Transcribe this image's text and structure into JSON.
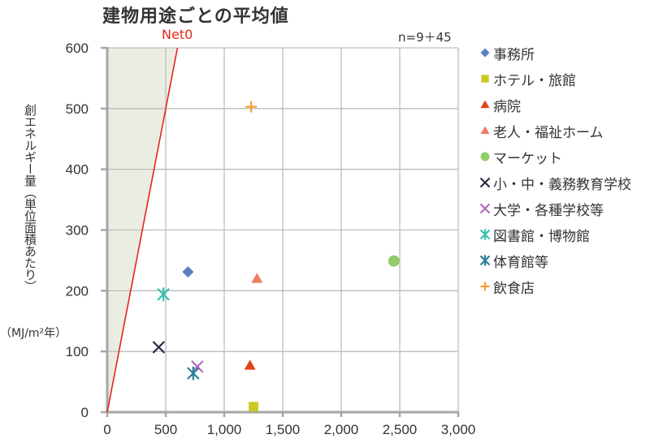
{
  "title": "建物用途ごとの平均値",
  "net0_label": "Net0",
  "n_label": "n=9＋45",
  "y_axis_label": "創エネルギー量（単位面積あたり）",
  "y_axis_unit": "（MJ/m²年）",
  "chart_data": {
    "type": "scatter",
    "title": "建物用途ごとの平均値",
    "xlabel": "",
    "ylabel": "創エネルギー量（単位面積あたり）（MJ/m²年）",
    "xlim": [
      0,
      3000
    ],
    "ylim": [
      0,
      600
    ],
    "x_ticks": [
      0,
      500,
      1000,
      1500,
      2000,
      2500,
      3000
    ],
    "x_tick_labels": [
      "0",
      "500",
      "1,000",
      "1,500",
      "2,000",
      "2,500",
      "3,000"
    ],
    "y_ticks": [
      0,
      100,
      200,
      300,
      400,
      500,
      600
    ],
    "y_tick_labels": [
      "0",
      "100",
      "200",
      "300",
      "400",
      "500",
      "600"
    ],
    "grid": true,
    "legend_position": "right",
    "annotations": [
      {
        "text": "Net0",
        "type": "line",
        "from": [
          0,
          0
        ],
        "to": [
          600,
          600
        ],
        "color": "#e8231c",
        "shaded_region": "above line (left of y=x)",
        "shade_color": "#ecede2"
      },
      {
        "text": "n=9＋45"
      }
    ],
    "series": [
      {
        "name": "事務所",
        "marker": "diamond",
        "color": "#5a7fc4",
        "x": [
          690
        ],
        "y": [
          231
        ]
      },
      {
        "name": "ホテル・旅館",
        "marker": "square",
        "color": "#c9c926",
        "x": [
          1250
        ],
        "y": [
          9
        ]
      },
      {
        "name": "病院",
        "marker": "triangle",
        "color": "#e5421c",
        "x": [
          1220
        ],
        "y": [
          77
        ]
      },
      {
        "name": "老人・福祉ホーム",
        "marker": "triangle",
        "color": "#ef7d62",
        "x": [
          1280
        ],
        "y": [
          220
        ]
      },
      {
        "name": "マーケット",
        "marker": "circle",
        "color": "#92cd6a",
        "x": [
          2450
        ],
        "y": [
          249
        ]
      },
      {
        "name": "小・中・義務教育学校",
        "marker": "x",
        "color": "#2f2d4a",
        "x": [
          440
        ],
        "y": [
          107
        ]
      },
      {
        "name": "大学・各種学校等",
        "marker": "x",
        "color": "#b468c0",
        "x": [
          770
        ],
        "y": [
          75
        ]
      },
      {
        "name": "図書館・博物館",
        "marker": "asterisk",
        "color": "#3bbfae",
        "x": [
          480
        ],
        "y": [
          194
        ]
      },
      {
        "name": "体育館等",
        "marker": "asterisk",
        "color": "#2b7f98",
        "x": [
          735
        ],
        "y": [
          64
        ]
      },
      {
        "name": "飲食店",
        "marker": "plus",
        "color": "#f5a033",
        "x": [
          1230
        ],
        "y": [
          503
        ]
      }
    ]
  }
}
